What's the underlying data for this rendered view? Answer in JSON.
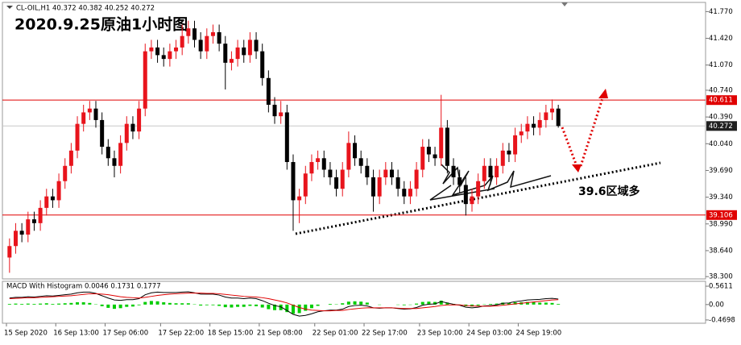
{
  "chart_data": [
    {
      "type": "candlestick",
      "title": "2020.9.25原油1小时图",
      "subtitle": "CL-OIL,H1  40.372 40.382 40.252 40.272",
      "annotation": "39.6区域多",
      "up_color": "#e8141c",
      "down_color": "#000000",
      "ylim": [
        38.27,
        41.89
      ],
      "yticks": [
        {
          "value": 41.77,
          "label": "41.770"
        },
        {
          "value": 41.42,
          "label": "41.420"
        },
        {
          "value": 41.07,
          "label": "41.070"
        },
        {
          "value": 40.74,
          "label": "40.740"
        },
        {
          "value": 40.39,
          "label": "40.390"
        },
        {
          "value": 40.04,
          "label": "40.040"
        },
        {
          "value": 39.69,
          "label": "39.690"
        },
        {
          "value": 39.34,
          "label": "39.340"
        },
        {
          "value": 38.99,
          "label": "38.990"
        },
        {
          "value": 38.64,
          "label": "38.640"
        },
        {
          "value": 38.3,
          "label": "38.300"
        }
      ],
      "levels": [
        {
          "value": 40.611,
          "color": "#e00000",
          "label_color": "#e00000"
        },
        {
          "value": 40.272,
          "color": "#c8c8c8",
          "label_color": "#202020"
        },
        {
          "value": 39.106,
          "color": "#e00000",
          "label_color": "#e00000"
        }
      ],
      "categories": [
        "15 Sep 2020",
        null,
        null,
        null,
        null,
        null,
        null,
        null,
        "16 Sep 13:00",
        null,
        null,
        null,
        null,
        null,
        null,
        null,
        "17 Sep 06:00",
        null,
        null,
        null,
        null,
        null,
        null,
        null,
        null,
        "17 Sep 22:00",
        null,
        null,
        null,
        null,
        null,
        null,
        null,
        "18 Sep 15:00",
        null,
        null,
        null,
        null,
        null,
        null,
        null,
        "21 Sep 08:00",
        null,
        null,
        null,
        null,
        null,
        null,
        null,
        null,
        "22 Sep 01:00",
        null,
        null,
        null,
        null,
        null,
        null,
        null,
        "22 Sep 17:00",
        null,
        null,
        null,
        null,
        null,
        null,
        null,
        null,
        "23 Sep 10:00",
        null,
        null,
        null,
        null,
        null,
        null,
        null,
        "24 Sep 03:00",
        null,
        null,
        null,
        null,
        null,
        null,
        null,
        "24 Sep 19:00",
        null,
        null,
        null,
        null,
        null,
        null
      ],
      "ohlc": [
        [
          38.55,
          38.8,
          38.35,
          38.7
        ],
        [
          38.7,
          39.0,
          38.6,
          38.9
        ],
        [
          38.9,
          39.0,
          38.75,
          38.85
        ],
        [
          38.85,
          39.15,
          38.75,
          39.05
        ],
        [
          39.05,
          39.15,
          38.9,
          39.0
        ],
        [
          39.0,
          39.3,
          38.9,
          39.2
        ],
        [
          39.2,
          39.45,
          39.1,
          39.35
        ],
        [
          39.35,
          39.45,
          39.2,
          39.3
        ],
        [
          39.3,
          39.65,
          39.2,
          39.55
        ],
        [
          39.55,
          39.85,
          39.45,
          39.75
        ],
        [
          39.75,
          40.05,
          39.65,
          39.95
        ],
        [
          39.95,
          40.4,
          39.85,
          40.3
        ],
        [
          40.3,
          40.55,
          40.2,
          40.45
        ],
        [
          40.45,
          40.6,
          40.35,
          40.5
        ],
        [
          40.5,
          40.6,
          40.25,
          40.35
        ],
        [
          40.35,
          40.45,
          39.9,
          40.0
        ],
        [
          40.0,
          40.1,
          39.75,
          39.85
        ],
        [
          39.85,
          39.95,
          39.6,
          39.75
        ],
        [
          39.75,
          40.15,
          39.65,
          40.05
        ],
        [
          40.05,
          40.4,
          39.95,
          40.3
        ],
        [
          40.3,
          40.4,
          40.1,
          40.2
        ],
        [
          40.2,
          40.6,
          40.1,
          40.5
        ],
        [
          40.5,
          41.35,
          40.4,
          41.25
        ],
        [
          41.25,
          41.4,
          41.15,
          41.3
        ],
        [
          41.3,
          41.4,
          41.1,
          41.2
        ],
        [
          41.2,
          41.3,
          41.05,
          41.15
        ],
        [
          41.15,
          41.35,
          41.05,
          41.25
        ],
        [
          41.25,
          41.4,
          41.15,
          41.3
        ],
        [
          41.3,
          41.6,
          41.2,
          41.45
        ],
        [
          41.45,
          41.65,
          41.35,
          41.55
        ],
        [
          41.55,
          41.65,
          41.3,
          41.4
        ],
        [
          41.4,
          41.5,
          41.15,
          41.25
        ],
        [
          41.25,
          41.55,
          41.15,
          41.45
        ],
        [
          41.45,
          41.6,
          41.35,
          41.5
        ],
        [
          41.5,
          41.6,
          41.25,
          41.35
        ],
        [
          41.35,
          41.45,
          40.75,
          41.1
        ],
        [
          41.1,
          41.25,
          41.0,
          41.15
        ],
        [
          41.15,
          41.4,
          41.05,
          41.3
        ],
        [
          41.3,
          41.4,
          41.1,
          41.2
        ],
        [
          41.2,
          41.5,
          41.1,
          41.4
        ],
        [
          41.4,
          41.5,
          41.15,
          41.25
        ],
        [
          41.25,
          41.35,
          40.8,
          40.9
        ],
        [
          40.9,
          41.0,
          40.45,
          40.55
        ],
        [
          40.55,
          40.65,
          40.3,
          40.4
        ],
        [
          40.4,
          40.6,
          40.3,
          40.45
        ],
        [
          40.45,
          40.55,
          39.7,
          39.8
        ],
        [
          39.8,
          39.9,
          38.9,
          39.3
        ],
        [
          39.3,
          39.45,
          39.0,
          39.35
        ],
        [
          39.35,
          39.75,
          39.25,
          39.65
        ],
        [
          39.65,
          39.9,
          39.55,
          39.8
        ],
        [
          39.8,
          39.95,
          39.7,
          39.85
        ],
        [
          39.85,
          39.95,
          39.6,
          39.7
        ],
        [
          39.7,
          39.8,
          39.5,
          39.6
        ],
        [
          39.6,
          39.7,
          39.35,
          39.45
        ],
        [
          39.45,
          39.8,
          39.35,
          39.7
        ],
        [
          39.7,
          40.2,
          39.6,
          40.05
        ],
        [
          40.05,
          40.15,
          39.75,
          39.85
        ],
        [
          39.85,
          39.95,
          39.65,
          39.75
        ],
        [
          39.75,
          39.85,
          39.5,
          39.6
        ],
        [
          39.6,
          39.7,
          39.15,
          39.35
        ],
        [
          39.35,
          39.7,
          39.25,
          39.6
        ],
        [
          39.6,
          39.8,
          39.5,
          39.7
        ],
        [
          39.7,
          39.8,
          39.5,
          39.6
        ],
        [
          39.6,
          39.7,
          39.35,
          39.45
        ],
        [
          39.45,
          39.55,
          39.25,
          39.35
        ],
        [
          39.35,
          39.55,
          39.25,
          39.45
        ],
        [
          39.45,
          39.8,
          39.35,
          39.7
        ],
        [
          39.7,
          40.1,
          39.6,
          40.0
        ],
        [
          40.0,
          40.1,
          39.8,
          39.9
        ],
        [
          39.9,
          40.0,
          39.75,
          39.85
        ],
        [
          39.85,
          40.68,
          39.75,
          40.25
        ],
        [
          40.25,
          40.35,
          39.65,
          39.75
        ],
        [
          39.75,
          39.85,
          39.5,
          39.6
        ],
        [
          39.6,
          39.7,
          39.4,
          39.5
        ],
        [
          39.5,
          39.6,
          39.1,
          39.25
        ],
        [
          39.25,
          39.45,
          39.15,
          39.35
        ],
        [
          39.35,
          39.65,
          39.25,
          39.55
        ],
        [
          39.55,
          39.85,
          39.45,
          39.75
        ],
        [
          39.75,
          39.85,
          39.5,
          39.6
        ],
        [
          39.6,
          39.85,
          39.5,
          39.75
        ],
        [
          39.75,
          40.05,
          39.65,
          39.95
        ],
        [
          39.95,
          40.05,
          39.8,
          39.9
        ],
        [
          39.9,
          40.25,
          39.8,
          40.15
        ],
        [
          40.15,
          40.3,
          40.05,
          40.2
        ],
        [
          40.2,
          40.4,
          40.1,
          40.3
        ],
        [
          40.3,
          40.4,
          40.15,
          40.25
        ],
        [
          40.25,
          40.45,
          40.15,
          40.35
        ],
        [
          40.35,
          40.55,
          40.25,
          40.45
        ],
        [
          40.45,
          40.62,
          40.35,
          40.5
        ],
        [
          40.5,
          40.55,
          40.25,
          40.272
        ]
      ]
    },
    {
      "type": "macd",
      "title": "MACD With Histogram 0.0046 0.1731 0.1777",
      "ylim": [
        -0.57,
        0.71
      ],
      "yticks": [
        0.5611,
        {
          "value": 0,
          "label": "0.00"
        },
        -0.4698
      ],
      "histogram": {
        "color": "#00cc00",
        "values": [
          0.02,
          0.03,
          0.02,
          0.03,
          0.02,
          0.03,
          0.04,
          0.02,
          0.03,
          0.04,
          0.05,
          0.07,
          0.07,
          0.05,
          0.01,
          -0.05,
          -0.1,
          -0.13,
          -0.11,
          -0.07,
          -0.06,
          -0.02,
          0.08,
          0.11,
          0.1,
          0.07,
          0.05,
          0.04,
          0.04,
          0.04,
          0.01,
          -0.03,
          -0.02,
          -0.02,
          -0.04,
          -0.08,
          -0.09,
          -0.07,
          -0.07,
          -0.04,
          -0.05,
          -0.09,
          -0.14,
          -0.17,
          -0.17,
          -0.23,
          -0.28,
          -0.26,
          -0.19,
          -0.11,
          -0.04,
          0.0,
          0.02,
          0.01,
          0.04,
          0.09,
          0.1,
          0.09,
          0.06,
          0.0,
          -0.01,
          0.0,
          0.0,
          -0.01,
          -0.02,
          -0.01,
          0.03,
          0.08,
          0.09,
          0.08,
          0.12,
          0.06,
          0.02,
          -0.01,
          -0.05,
          -0.06,
          -0.03,
          0.01,
          0.02,
          0.03,
          0.06,
          0.05,
          0.07,
          0.07,
          0.08,
          0.07,
          0.06,
          0.06,
          0.05,
          0.02
        ]
      },
      "series": [
        {
          "color": "#000000",
          "values": [
            0.2,
            0.22,
            0.22,
            0.24,
            0.23,
            0.25,
            0.27,
            0.26,
            0.28,
            0.3,
            0.32,
            0.36,
            0.38,
            0.38,
            0.34,
            0.27,
            0.2,
            0.14,
            0.13,
            0.15,
            0.15,
            0.18,
            0.3,
            0.36,
            0.38,
            0.37,
            0.37,
            0.37,
            0.38,
            0.39,
            0.36,
            0.32,
            0.32,
            0.32,
            0.29,
            0.23,
            0.2,
            0.2,
            0.18,
            0.2,
            0.18,
            0.12,
            0.04,
            -0.03,
            -0.07,
            -0.18,
            -0.3,
            -0.35,
            -0.33,
            -0.28,
            -0.22,
            -0.19,
            -0.17,
            -0.17,
            -0.14,
            -0.06,
            -0.03,
            -0.02,
            -0.04,
            -0.1,
            -0.11,
            -0.1,
            -0.1,
            -0.12,
            -0.14,
            -0.13,
            -0.09,
            -0.02,
            0.01,
            0.02,
            0.09,
            0.05,
            0.01,
            -0.02,
            -0.08,
            -0.1,
            -0.08,
            -0.04,
            -0.03,
            -0.01,
            0.04,
            0.05,
            0.09,
            0.11,
            0.14,
            0.15,
            0.16,
            0.18,
            0.19,
            0.17
          ]
        },
        {
          "color": "#e00000",
          "values": [
            0.18,
            0.19,
            0.2,
            0.21,
            0.21,
            0.22,
            0.23,
            0.24,
            0.25,
            0.26,
            0.27,
            0.29,
            0.31,
            0.33,
            0.33,
            0.32,
            0.3,
            0.27,
            0.24,
            0.22,
            0.21,
            0.2,
            0.22,
            0.25,
            0.28,
            0.3,
            0.32,
            0.33,
            0.34,
            0.35,
            0.35,
            0.35,
            0.34,
            0.34,
            0.33,
            0.31,
            0.29,
            0.27,
            0.25,
            0.24,
            0.23,
            0.21,
            0.18,
            0.14,
            0.1,
            0.05,
            -0.02,
            -0.09,
            -0.14,
            -0.17,
            -0.18,
            -0.19,
            -0.19,
            -0.18,
            -0.18,
            -0.15,
            -0.13,
            -0.11,
            -0.1,
            -0.1,
            -0.1,
            -0.1,
            -0.1,
            -0.11,
            -0.12,
            -0.12,
            -0.12,
            -0.1,
            -0.08,
            -0.06,
            -0.03,
            -0.01,
            -0.01,
            -0.01,
            -0.03,
            -0.04,
            -0.05,
            -0.05,
            -0.05,
            -0.04,
            -0.02,
            0.0,
            0.02,
            0.04,
            0.06,
            0.08,
            0.1,
            0.12,
            0.14,
            0.15
          ]
        }
      ]
    }
  ]
}
